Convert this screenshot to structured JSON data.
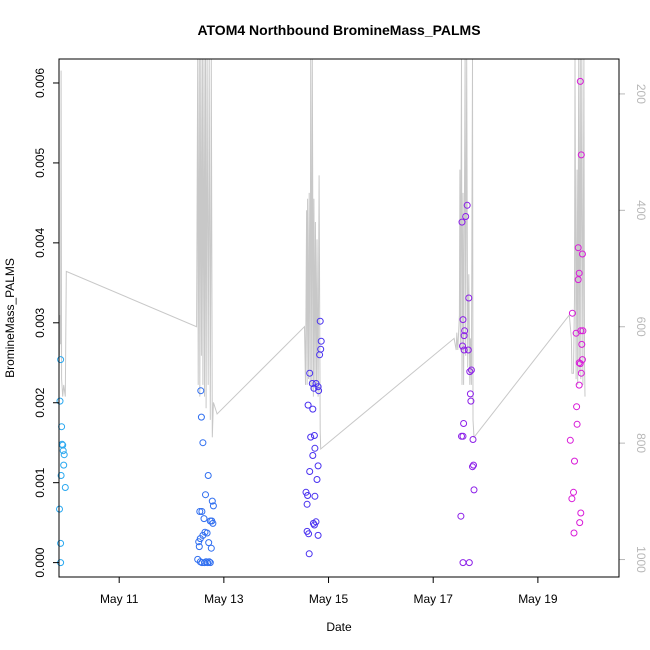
{
  "chart_data": {
    "type": "scatter",
    "title": "ATOM4 Northbound BromineMass_PALMS",
    "xlabel": "Date",
    "ylabel": "BromineMass_PALMS",
    "xlim": [
      9.85,
      20.55
    ],
    "ylim": [
      -0.00018,
      0.0063
    ],
    "x_ticks": [
      11,
      13,
      15,
      17,
      19
    ],
    "x_tick_labels": [
      "May 11",
      "May 13",
      "May 15",
      "May 17",
      "May 19"
    ],
    "y_ticks": [
      0.0,
      0.001,
      0.002,
      0.003,
      0.004,
      0.005,
      0.006
    ],
    "y_tick_labels": [
      "0.000",
      "0.001",
      "0.002",
      "0.003",
      "0.004",
      "0.005",
      "0.006"
    ],
    "y2_lim": [
      1030,
      140
    ],
    "y2_ticks": [
      200,
      400,
      600,
      800,
      1000
    ],
    "y2_tick_labels": [
      "200",
      "400",
      "600",
      "800",
      "1000"
    ],
    "colors": {
      "frame": "#000000",
      "line": "#c8c8c8",
      "y2_text": "#b8b8b8"
    },
    "series": [
      {
        "name": "points",
        "marker": "open-circle",
        "points": [
          [
            9.88,
            0.00254,
            "#29a8f0"
          ],
          [
            9.87,
            0.00202,
            "#29a8f0"
          ],
          [
            9.9,
            0.0017,
            "#29a8f0"
          ],
          [
            9.91,
            0.00148,
            "#29a8f0"
          ],
          [
            9.92,
            0.00147,
            "#29a8f0"
          ],
          [
            9.93,
            0.0014,
            "#29a8f0"
          ],
          [
            9.95,
            0.00135,
            "#29a8f0"
          ],
          [
            9.94,
            0.00122,
            "#29a8f0"
          ],
          [
            9.89,
            0.00109,
            "#29a8f0"
          ],
          [
            9.97,
            0.00094,
            "#29a8f0"
          ],
          [
            9.86,
            0.00067,
            "#29a8f0"
          ],
          [
            9.88,
            0.00024,
            "#29a8f0"
          ],
          [
            9.88,
            0.0,
            "#29a8f0"
          ],
          [
            12.56,
            0.00215,
            "#2f6ef0"
          ],
          [
            12.57,
            0.00182,
            "#2f6ef0"
          ],
          [
            12.6,
            0.0015,
            "#2f6ef0"
          ],
          [
            12.7,
            0.00109,
            "#2f6ef0"
          ],
          [
            12.65,
            0.00085,
            "#2f6ef0"
          ],
          [
            12.78,
            0.00077,
            "#2f6ef0"
          ],
          [
            12.8,
            0.00071,
            "#2f6ef0"
          ],
          [
            12.54,
            0.00064,
            "#2f6ef0"
          ],
          [
            12.58,
            0.00064,
            "#2f6ef0"
          ],
          [
            12.62,
            0.00055,
            "#2f6ef0"
          ],
          [
            12.74,
            0.00052,
            "#2f6ef0"
          ],
          [
            12.77,
            0.00052,
            "#2f6ef0"
          ],
          [
            12.79,
            0.00049,
            "#2f6ef0"
          ],
          [
            12.64,
            0.00038,
            "#2f6ef0"
          ],
          [
            12.68,
            0.00037,
            "#2f6ef0"
          ],
          [
            12.6,
            0.00034,
            "#2f6ef0"
          ],
          [
            12.55,
            0.0003,
            "#2f6ef0"
          ],
          [
            12.52,
            0.00026,
            "#2f6ef0"
          ],
          [
            12.71,
            0.00025,
            "#2f6ef0"
          ],
          [
            12.53,
            0.0002,
            "#2f6ef0"
          ],
          [
            12.76,
            0.00018,
            "#2f6ef0"
          ],
          [
            12.5,
            4e-05,
            "#2f6ef0"
          ],
          [
            12.55,
            1e-05,
            "#2f6ef0"
          ],
          [
            12.58,
            0.0,
            "#2f6ef0"
          ],
          [
            12.63,
            0.0,
            "#2f6ef0"
          ],
          [
            12.66,
            1e-05,
            "#2f6ef0"
          ],
          [
            12.69,
            0.0,
            "#2f6ef0"
          ],
          [
            12.72,
            1e-05,
            "#2f6ef0"
          ],
          [
            12.74,
            0.0,
            "#2f6ef0"
          ],
          [
            14.84,
            0.00302,
            "#4830f0"
          ],
          [
            14.86,
            0.00277,
            "#4830f0"
          ],
          [
            14.85,
            0.00267,
            "#4830f0"
          ],
          [
            14.83,
            0.0026,
            "#4830f0"
          ],
          [
            14.64,
            0.00237,
            "#4830f0"
          ],
          [
            14.69,
            0.00224,
            "#4830f0"
          ],
          [
            14.76,
            0.00224,
            "#4830f0"
          ],
          [
            14.8,
            0.0022,
            "#4830f0"
          ],
          [
            14.72,
            0.00218,
            "#4830f0"
          ],
          [
            14.81,
            0.00215,
            "#4830f0"
          ],
          [
            14.61,
            0.00197,
            "#4830f0"
          ],
          [
            14.7,
            0.00192,
            "#4830f0"
          ],
          [
            14.66,
            0.00157,
            "#4830f0"
          ],
          [
            14.73,
            0.00159,
            "#4830f0"
          ],
          [
            14.74,
            0.00143,
            "#4830f0"
          ],
          [
            14.7,
            0.00134,
            "#4830f0"
          ],
          [
            14.8,
            0.00121,
            "#4830f0"
          ],
          [
            14.64,
            0.00114,
            "#4830f0"
          ],
          [
            14.78,
            0.00104,
            "#4830f0"
          ],
          [
            14.57,
            0.00088,
            "#4830f0"
          ],
          [
            14.6,
            0.00084,
            "#4830f0"
          ],
          [
            14.74,
            0.00083,
            "#4830f0"
          ],
          [
            14.59,
            0.00073,
            "#4830f0"
          ],
          [
            14.76,
            0.00051,
            "#4830f0"
          ],
          [
            14.71,
            0.00049,
            "#4830f0"
          ],
          [
            14.73,
            0.00047,
            "#4830f0"
          ],
          [
            14.59,
            0.00039,
            "#4830f0"
          ],
          [
            14.62,
            0.00036,
            "#4830f0"
          ],
          [
            14.8,
            0.00034,
            "#4830f0"
          ],
          [
            14.63,
            0.00011,
            "#4830f0"
          ],
          [
            17.65,
            0.00447,
            "#8c1fe8"
          ],
          [
            17.62,
            0.00433,
            "#8c1fe8"
          ],
          [
            17.55,
            0.00426,
            "#8c1fe8"
          ],
          [
            17.68,
            0.00331,
            "#8c1fe8"
          ],
          [
            17.57,
            0.00304,
            "#8c1fe8"
          ],
          [
            17.6,
            0.0029,
            "#8c1fe8"
          ],
          [
            17.59,
            0.00284,
            "#8c1fe8"
          ],
          [
            17.56,
            0.00271,
            "#8c1fe8"
          ],
          [
            17.59,
            0.00266,
            "#8c1fe8"
          ],
          [
            17.67,
            0.00266,
            "#8c1fe8"
          ],
          [
            17.73,
            0.00241,
            "#8c1fe8"
          ],
          [
            17.7,
            0.00239,
            "#8c1fe8"
          ],
          [
            17.71,
            0.00211,
            "#8c1fe8"
          ],
          [
            17.72,
            0.00202,
            "#8c1fe8"
          ],
          [
            17.58,
            0.00174,
            "#8c1fe8"
          ],
          [
            17.54,
            0.00158,
            "#8c1fe8"
          ],
          [
            17.57,
            0.00158,
            "#8c1fe8"
          ],
          [
            17.76,
            0.00154,
            "#8c1fe8"
          ],
          [
            17.77,
            0.00122,
            "#8c1fe8"
          ],
          [
            17.75,
            0.0012,
            "#8c1fe8"
          ],
          [
            17.78,
            0.00091,
            "#8c1fe8"
          ],
          [
            17.53,
            0.00058,
            "#8c1fe8"
          ],
          [
            17.57,
            0.0,
            "#8c1fe8"
          ],
          [
            17.69,
            0.0,
            "#8c1fe8"
          ],
          [
            19.81,
            0.00602,
            "#d81ad8"
          ],
          [
            19.83,
            0.0051,
            "#d81ad8"
          ],
          [
            19.77,
            0.00394,
            "#d81ad8"
          ],
          [
            19.85,
            0.00386,
            "#d81ad8"
          ],
          [
            19.79,
            0.00362,
            "#d81ad8"
          ],
          [
            19.77,
            0.00354,
            "#d81ad8"
          ],
          [
            19.66,
            0.00312,
            "#d81ad8"
          ],
          [
            19.82,
            0.0029,
            "#d81ad8"
          ],
          [
            19.86,
            0.0029,
            "#d81ad8"
          ],
          [
            19.73,
            0.00287,
            "#d81ad8"
          ],
          [
            19.84,
            0.00273,
            "#d81ad8"
          ],
          [
            19.85,
            0.00254,
            "#d81ad8"
          ],
          [
            19.79,
            0.0025,
            "#d81ad8"
          ],
          [
            19.81,
            0.00249,
            "#d81ad8"
          ],
          [
            19.83,
            0.00237,
            "#d81ad8"
          ],
          [
            19.79,
            0.00222,
            "#d81ad8"
          ],
          [
            19.74,
            0.00195,
            "#d81ad8"
          ],
          [
            19.75,
            0.00173,
            "#d81ad8"
          ],
          [
            19.62,
            0.00153,
            "#d81ad8"
          ],
          [
            19.7,
            0.00127,
            "#d81ad8"
          ],
          [
            19.68,
            0.00088,
            "#d81ad8"
          ],
          [
            19.65,
            0.0008,
            "#d81ad8"
          ],
          [
            19.82,
            0.00062,
            "#d81ad8"
          ],
          [
            19.8,
            0.0005,
            "#d81ad8"
          ],
          [
            19.69,
            0.00037,
            "#d81ad8"
          ]
        ]
      },
      {
        "name": "pressure trace (right axis)",
        "axis": "right",
        "color": "#c8c8c8",
        "points": [
          [
            9.86,
            650
          ],
          [
            9.87,
            580
          ],
          [
            9.88,
            630
          ],
          [
            9.89,
            160
          ],
          [
            9.9,
            690
          ],
          [
            9.92,
            720
          ],
          [
            9.94,
            700
          ],
          [
            9.97,
            720
          ],
          [
            9.99,
            505
          ],
          [
            12.48,
            600
          ],
          [
            12.5,
            100
          ],
          [
            12.51,
            700
          ],
          [
            12.53,
            100
          ],
          [
            12.54,
            720
          ],
          [
            12.56,
            100
          ],
          [
            12.57,
            650
          ],
          [
            12.59,
            100
          ],
          [
            12.6,
            700
          ],
          [
            12.62,
            100
          ],
          [
            12.63,
            720
          ],
          [
            12.65,
            100
          ],
          [
            12.66,
            740
          ],
          [
            12.68,
            100
          ],
          [
            12.7,
            700
          ],
          [
            12.72,
            100
          ],
          [
            12.74,
            760
          ],
          [
            12.76,
            100
          ],
          [
            12.78,
            790
          ],
          [
            12.8,
            730
          ],
          [
            12.87,
            750
          ],
          [
            14.54,
            600
          ],
          [
            14.56,
            700
          ],
          [
            14.58,
            400
          ],
          [
            14.59,
            700
          ],
          [
            14.6,
            380
          ],
          [
            14.62,
            690
          ],
          [
            14.63,
            370
          ],
          [
            14.65,
            700
          ],
          [
            14.66,
            100
          ],
          [
            14.68,
            710
          ],
          [
            14.69,
            100
          ],
          [
            14.71,
            720
          ],
          [
            14.72,
            380
          ],
          [
            14.74,
            700
          ],
          [
            14.75,
            420
          ],
          [
            14.77,
            710
          ],
          [
            14.78,
            450
          ],
          [
            14.8,
            720
          ],
          [
            14.82,
            340
          ],
          [
            14.84,
            780
          ],
          [
            14.85,
            810
          ],
          [
            17.4,
            620
          ],
          [
            17.44,
            640
          ],
          [
            17.45,
            610
          ],
          [
            17.47,
            640
          ],
          [
            17.5,
            580
          ],
          [
            17.51,
            330
          ],
          [
            17.52,
            640
          ],
          [
            17.54,
            100
          ],
          [
            17.55,
            700
          ],
          [
            17.57,
            370
          ],
          [
            17.58,
            700
          ],
          [
            17.61,
            100
          ],
          [
            17.62,
            650
          ],
          [
            17.64,
            100
          ],
          [
            17.66,
            670
          ],
          [
            17.68,
            510
          ],
          [
            17.7,
            700
          ],
          [
            17.71,
            620
          ],
          [
            17.73,
            700
          ],
          [
            17.75,
            100
          ],
          [
            17.76,
            760
          ],
          [
            17.78,
            790
          ],
          [
            19.6,
            580
          ],
          [
            19.64,
            620
          ],
          [
            19.65,
            680
          ],
          [
            19.68,
            680
          ],
          [
            19.7,
            550
          ],
          [
            19.71,
            100
          ],
          [
            19.73,
            690
          ],
          [
            19.75,
            330
          ],
          [
            19.76,
            700
          ],
          [
            19.78,
            100
          ],
          [
            19.79,
            680
          ],
          [
            19.81,
            100
          ],
          [
            19.82,
            690
          ],
          [
            19.84,
            100
          ],
          [
            19.86,
            700
          ],
          [
            19.88,
            100
          ],
          [
            19.89,
            660
          ],
          [
            19.9,
            720
          ]
        ]
      }
    ]
  }
}
